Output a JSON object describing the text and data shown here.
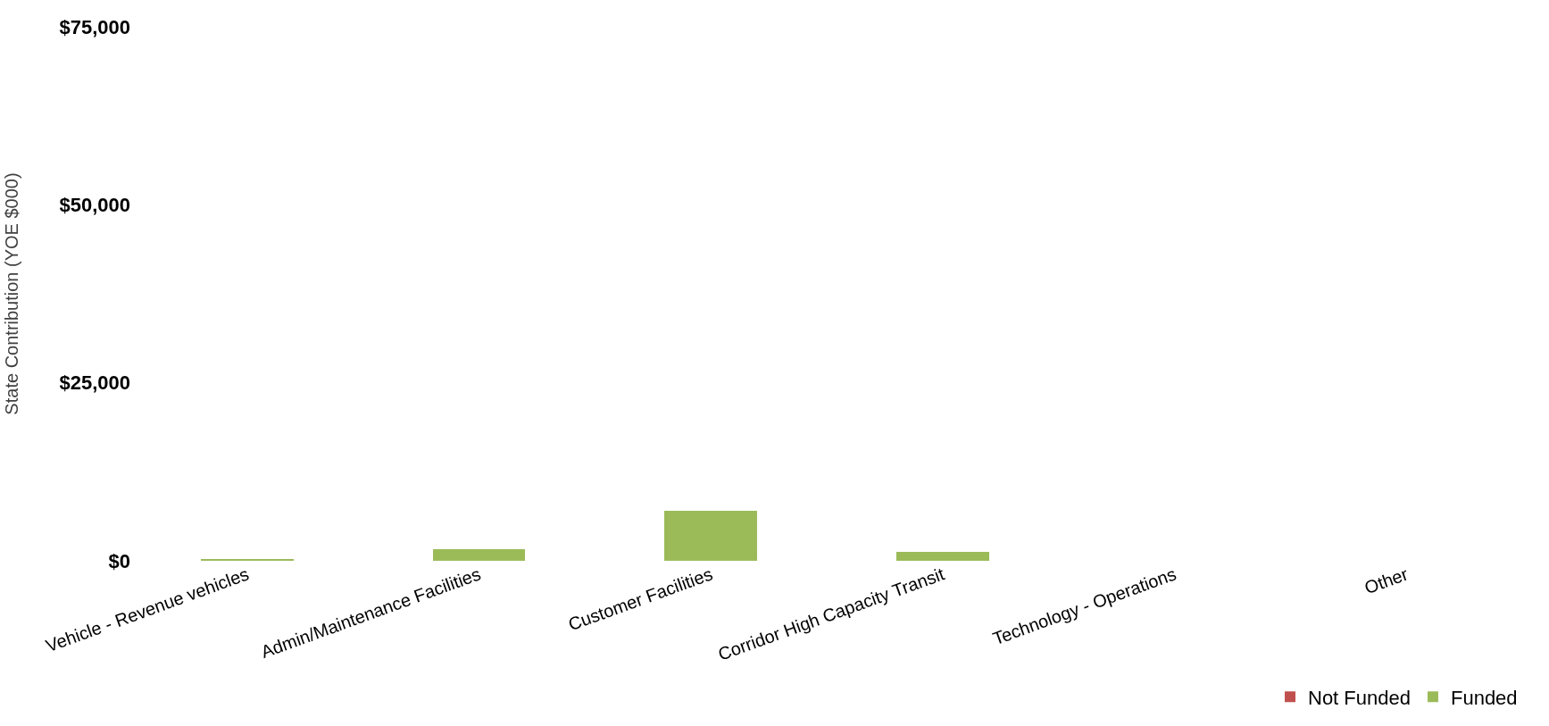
{
  "chart_data": {
    "type": "bar",
    "ylabel": "State Contribution (YOE $000)",
    "categories": [
      "Vehicle - Revenue vehicles",
      "Admin/Maintenance Facilities",
      "Customer Facilities",
      "Corridor High Capacity Transit",
      "Technology - Operations",
      "Other"
    ],
    "series": [
      {
        "name": "Funded",
        "color": "#9bbb59",
        "values": [
          200,
          1600,
          7000,
          1200,
          0,
          0
        ]
      },
      {
        "name": "Not Funded",
        "color": "#c0504d",
        "values": [
          0,
          0,
          0,
          0,
          0,
          0
        ]
      }
    ],
    "stacked": true,
    "ylim": [
      0,
      75000
    ],
    "yticks": [
      {
        "value": 0,
        "label": "$0"
      },
      {
        "value": 25000,
        "label": "$25,000"
      },
      {
        "value": 50000,
        "label": "$50,000"
      },
      {
        "value": 75000,
        "label": "$75,000"
      }
    ],
    "grid": false,
    "legend": "bottom right"
  }
}
